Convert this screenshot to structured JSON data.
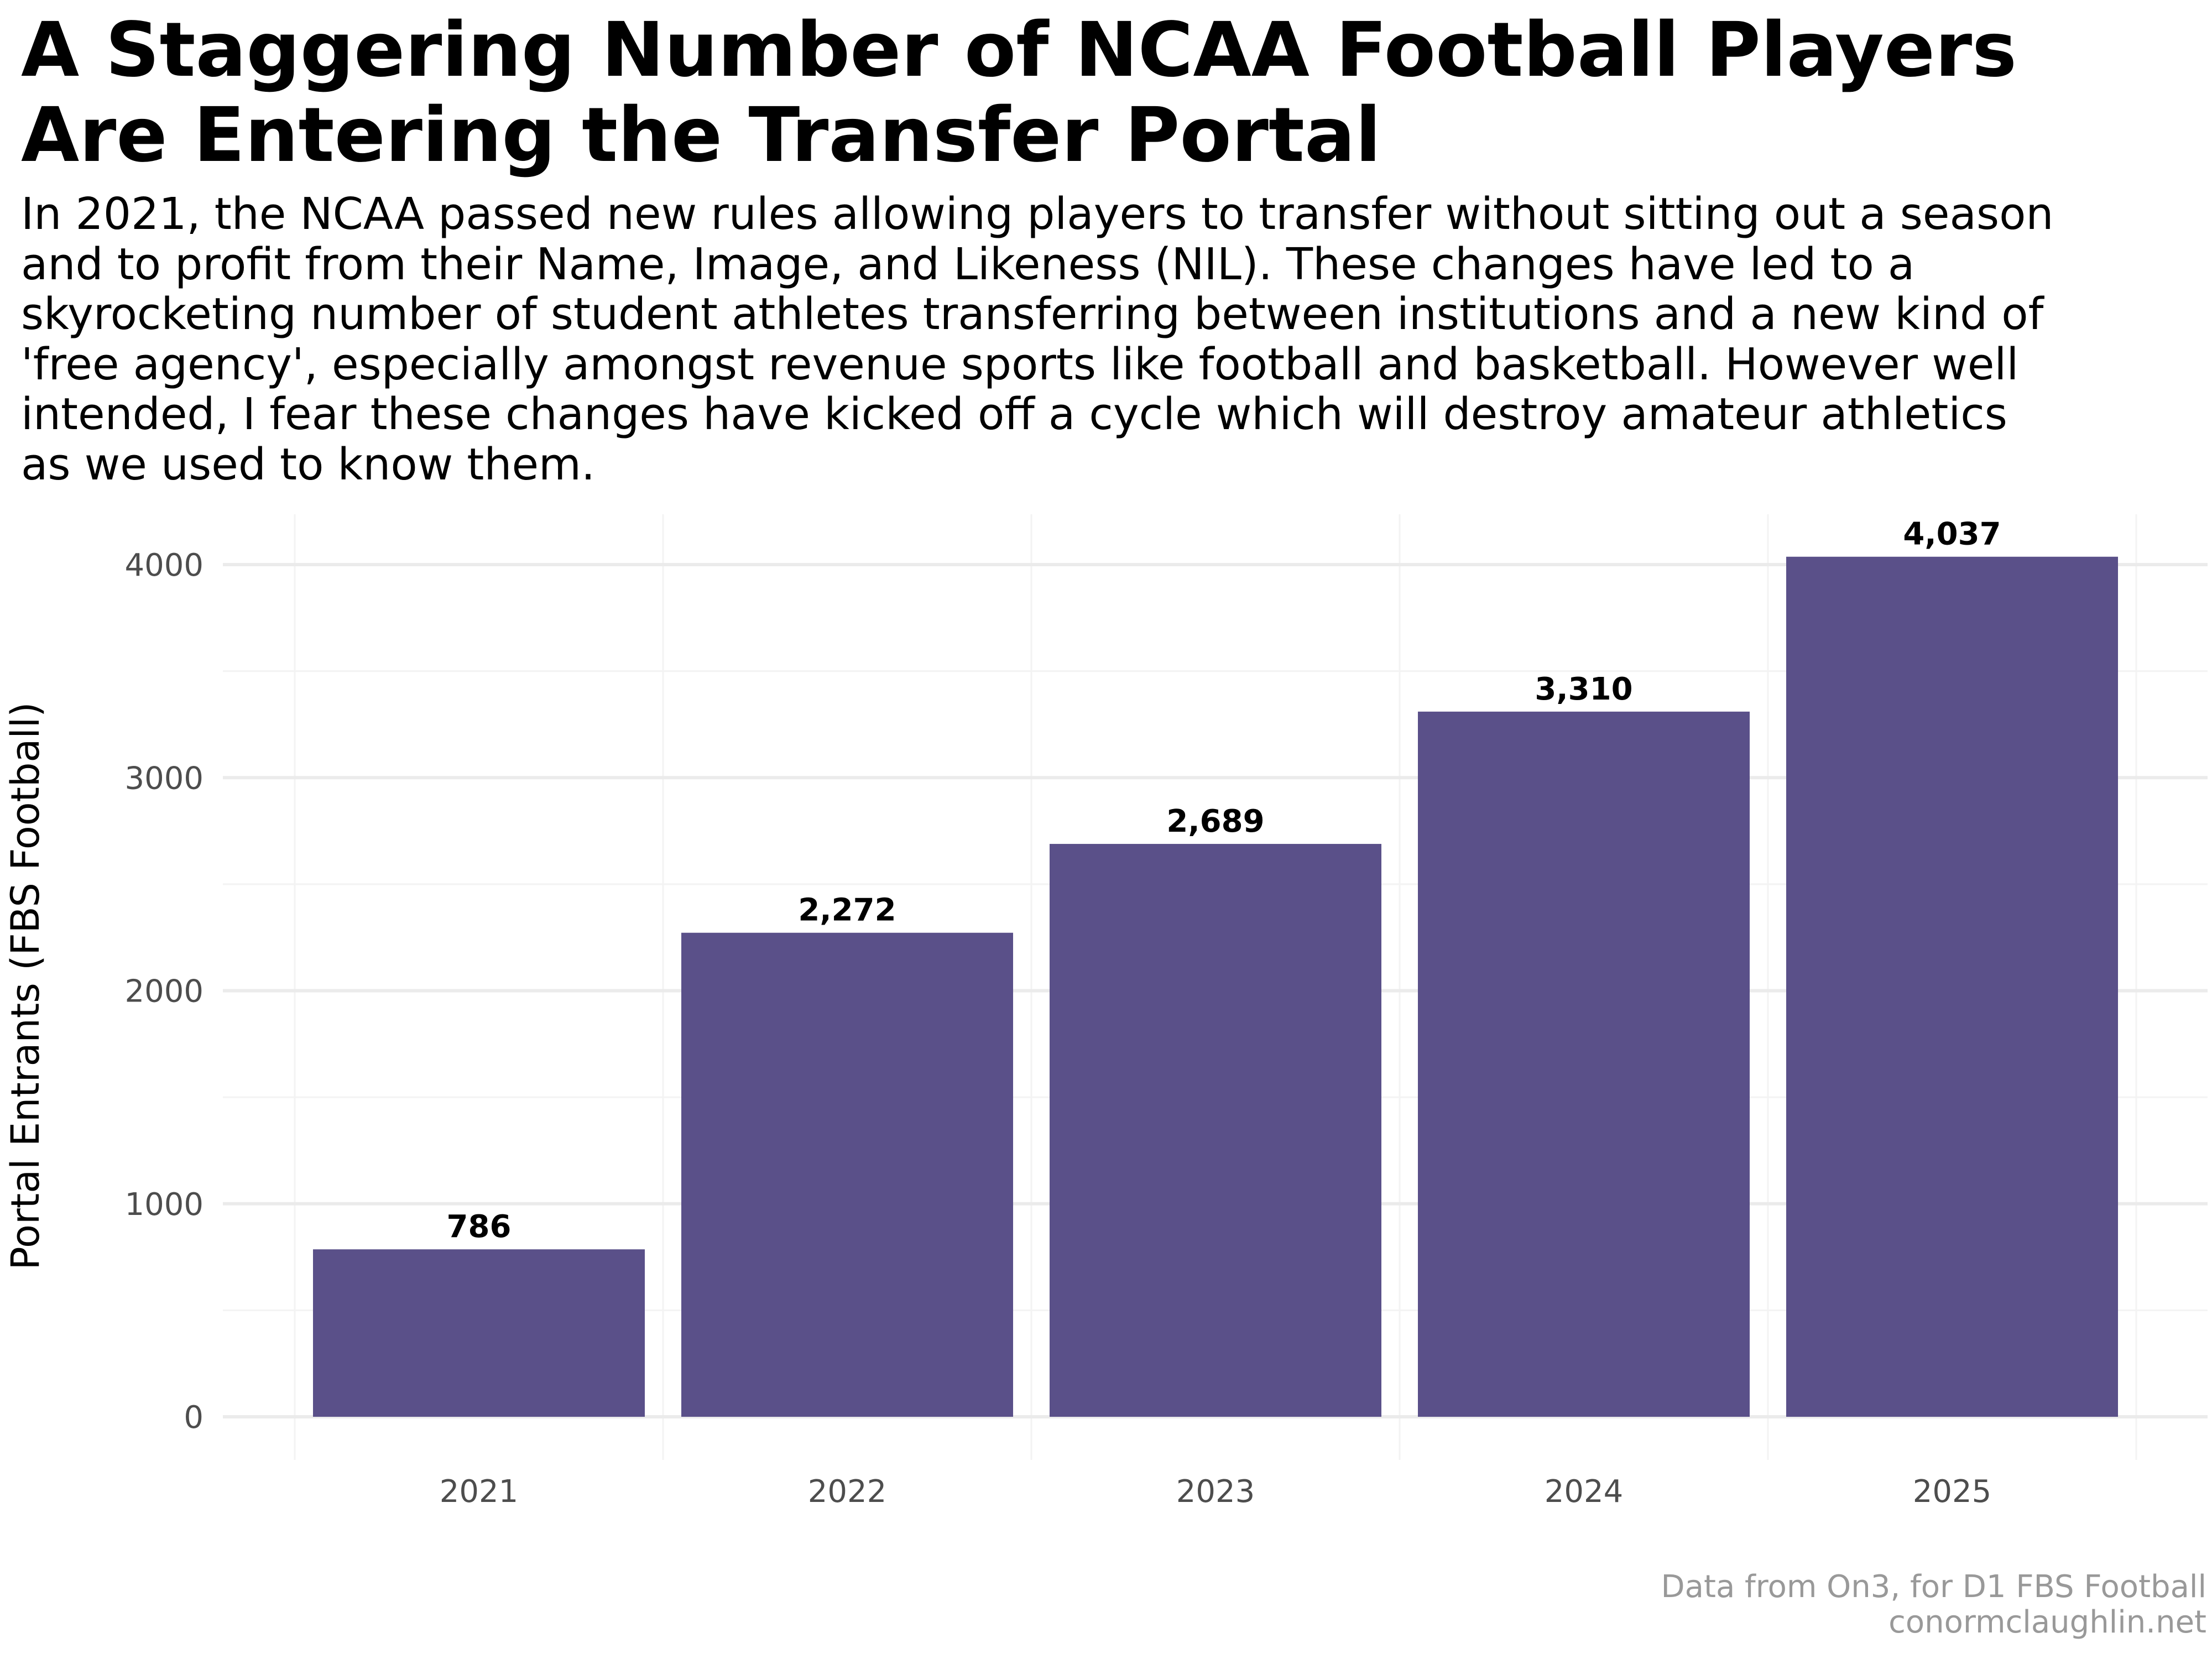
{
  "chart_data": {
    "type": "bar",
    "title": "A Staggering Number of NCAA Football Players\nAre Entering the Transfer Portal",
    "subtitle": "In 2021, the NCAA passed new rules allowing players to transfer without sitting out a season\nand to profit from their Name, Image, and Likeness (NIL). These changes have led to a\nskyrocketing number of student athletes transferring between institutions and a new kind of\n'free agency', especially amongst revenue sports like football and basketball. However well\nintended, I fear these changes have kicked off a cycle which will destroy amateur athletics\nas we used to know them.",
    "xlabel": "",
    "ylabel": "Portal Entrants (FBS Football)",
    "categories": [
      "2021",
      "2022",
      "2023",
      "2024",
      "2025"
    ],
    "values": [
      786,
      2272,
      2689,
      3310,
      4037
    ],
    "value_labels": [
      "786",
      "2,272",
      "2,689",
      "3,310",
      "4,037"
    ],
    "yticks": [
      0,
      1000,
      2000,
      3000,
      4000
    ],
    "ytick_labels": [
      "0",
      "1000",
      "2000",
      "3000",
      "4000"
    ],
    "ylim": [
      -202,
      4240
    ],
    "grid": true,
    "legend": "none",
    "bar_color": "#5a5089",
    "caption": [
      "Data from On3, for D1 FBS Football",
      "conormclaughlin.net"
    ]
  }
}
